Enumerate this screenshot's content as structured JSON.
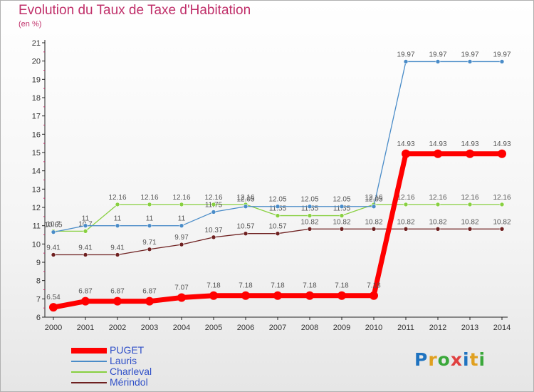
{
  "title": "Evolution du Taux de Taxe d'Habitation",
  "subtitle": "(en %)",
  "logo": {
    "text": "Proxiti",
    "letter_colors": [
      "#1f73c0",
      "#e0a020",
      "#3aa83a",
      "#e04040",
      "#1f73c0",
      "#e0a020",
      "#3aa83a"
    ]
  },
  "chart_data": {
    "type": "line",
    "x": [
      "2000",
      "2001",
      "2002",
      "2003",
      "2004",
      "2005",
      "2006",
      "2007",
      "2008",
      "2009",
      "2010",
      "2011",
      "2012",
      "2013",
      "2014"
    ],
    "ylim": [
      6,
      21
    ],
    "yticks": [
      "6",
      "7",
      "8",
      "9",
      "10",
      "11",
      "12",
      "13",
      "14",
      "15",
      "16",
      "17",
      "18",
      "19",
      "20",
      "21"
    ],
    "grid": false,
    "legend_position": "bottom-left",
    "series": [
      {
        "name": "Mérindol",
        "color": "#6e2020",
        "width": 1.3,
        "values": [
          9.41,
          9.41,
          9.41,
          9.71,
          9.97,
          10.37,
          10.57,
          10.57,
          10.82,
          10.82,
          10.82,
          10.82,
          10.82,
          10.82,
          10.82
        ],
        "labels": [
          "9.41",
          "9.41",
          "9.41",
          "9.71",
          "9.97",
          "10.37",
          "10.57",
          "10.57",
          "10.82",
          "10.82",
          "10.82",
          "10.82",
          "10.82",
          "10.82",
          "10.82"
        ]
      },
      {
        "name": "Charleval",
        "color": "#88d040",
        "width": 1.3,
        "values": [
          10.7,
          10.7,
          12.16,
          12.16,
          12.16,
          12.16,
          12.16,
          11.55,
          11.55,
          11.55,
          12.16,
          12.16,
          12.16,
          12.16,
          12.16
        ],
        "labels": [
          "10.7",
          "10.7",
          "12.16",
          "12.16",
          "12.16",
          "12.16",
          "12.16",
          "11.55",
          "11.55",
          "11.55",
          "12.16",
          "12.16",
          "12.16",
          "12.16",
          "12.16"
        ]
      },
      {
        "name": "Lauris",
        "color": "#4a8cc8",
        "width": 1.3,
        "values": [
          10.65,
          11,
          11,
          11,
          11,
          11.75,
          12.05,
          12.05,
          12.05,
          12.05,
          12.05,
          19.97,
          19.97,
          19.97,
          19.97
        ],
        "labels": [
          "10.65",
          "11",
          "11",
          "11",
          "11",
          "11.75",
          "12.05",
          "12.05",
          "12.05",
          "12.05",
          "12.05",
          "19.97",
          "19.97",
          "19.97",
          "19.97"
        ]
      },
      {
        "name": "PUGET",
        "color": "#ff0000",
        "width": 7,
        "values": [
          6.54,
          6.87,
          6.87,
          6.87,
          7.07,
          7.18,
          7.18,
          7.18,
          7.18,
          7.18,
          7.18,
          14.93,
          14.93,
          14.93,
          14.93
        ],
        "labels": [
          "6.54",
          "6.87",
          "6.87",
          "6.87",
          "7.07",
          "7.18",
          "7.18",
          "7.18",
          "7.18",
          "7.18",
          "7.18",
          "14.93",
          "14.93",
          "14.93",
          "14.93"
        ]
      }
    ]
  }
}
